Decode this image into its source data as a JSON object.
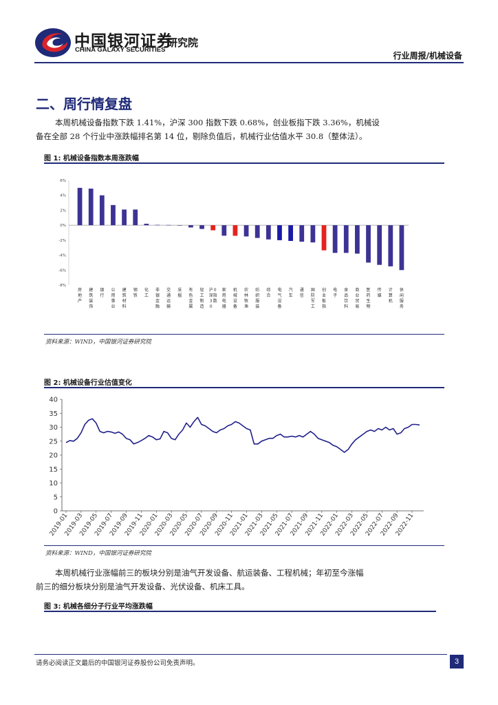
{
  "header": {
    "logo": "china-galaxy-logo",
    "company_cn": "中国银河证券",
    "company_en": "CHINA GALAXY SECURITIES",
    "institute": "研究院",
    "report_type": "行业周报/机械设备"
  },
  "section": {
    "title": "二、周行情复盘",
    "para1_line1": "本周机械设备指数下跌 1.41%，沪深 300 指数下跌 0.68%，创业板指下跌 3.36%，机械设",
    "para1_line2": "备在全部 28 个行业中涨跌幅排名第 14 位，剔除负值后，机械行业估值水平 30.8（整体法）。",
    "para2_line1": "本周机械行业涨幅前三的板块分别是油气开发设备、航运装备、工程机械；年初至今涨幅",
    "para2_line2": "前三的细分板块分别是油气开发设备、光伏设备、机床工具。"
  },
  "figure1": {
    "title": "图 1:  机械设备指数本周涨跌幅",
    "source": "资料来源：WIND，中国银河证券研究院"
  },
  "figure2": {
    "title": "图 2:  机械设备行业估值变化",
    "source": "资料来源：WIND，中国银河证券研究院"
  },
  "figure3": {
    "title": "图 3:  机械各细分子行业平均涨跌幅"
  },
  "footer": {
    "disclaimer": "请务必阅读正文最后的中国银河证券股份公司免责声明。",
    "page": "3"
  },
  "colors": {
    "brand": "#1f2a78",
    "bar_default": "#3d3394",
    "bar_highlight": "#e3231f",
    "bar_index": "#1a1aa8",
    "line": "#1f1f8a",
    "logo_red": "#d9232b"
  },
  "chart_data": [
    {
      "type": "bar",
      "title": "机械设备指数本周涨跌幅",
      "ylim": [
        -8,
        6
      ],
      "yticks": [
        "6%",
        "4%",
        "2%",
        "0%",
        "-2%",
        "-4%",
        "-6%",
        "-8%"
      ],
      "categories": [
        "房地产",
        "建筑装饰",
        "银行",
        "公用事业",
        "建筑材料",
        "钢铁",
        "化工",
        "非银金融",
        "交通运输",
        "采掘",
        "有色金属",
        "轻工制造",
        "沪深300指数",
        "家用电器",
        "机械设备",
        "农林牧渔",
        "纺织服装",
        "综合",
        "电气设备",
        "汽车",
        "通信",
        "国防军工",
        "创业板指",
        "电子",
        "食品饮料",
        "商业贸易",
        "医药生物",
        "传媒",
        "计算机",
        "休闲服务"
      ],
      "values": [
        5.0,
        4.9,
        4.0,
        2.7,
        2.1,
        2.1,
        0.2,
        0.05,
        0.03,
        0.0,
        -0.3,
        -0.5,
        -0.68,
        -1.4,
        -1.41,
        -1.5,
        -1.7,
        -1.9,
        -2.0,
        -2.1,
        -2.2,
        -2.3,
        -3.36,
        -3.7,
        -3.7,
        -3.8,
        -5.0,
        -5.3,
        -5.5,
        -6.0
      ],
      "highlight": [
        "沪深300指数",
        "机械设备",
        "创业板指"
      ],
      "index_bars": [
        "电气设备",
        "汽车"
      ]
    },
    {
      "type": "line",
      "title": "机械设备行业估值变化",
      "ylim": [
        0,
        40
      ],
      "yticks": [
        0,
        5,
        10,
        15,
        20,
        25,
        30,
        35,
        40
      ],
      "xlabels": [
        "2019-01",
        "2019-03",
        "2019-05",
        "2019-07",
        "2019-09",
        "2019-11",
        "2020-01",
        "2020-03",
        "2020-05",
        "2020-07",
        "2020-09",
        "2020-11",
        "2021-01",
        "2021-03",
        "2021-05",
        "2021-07",
        "2021-09",
        "2021-11",
        "2022-01",
        "2022-03",
        "2022-05",
        "2022-07",
        "2022-09",
        "2022-11"
      ],
      "x": [
        0,
        0.5,
        1,
        1.5,
        2,
        2.5,
        3,
        3.5,
        4,
        4.5,
        5,
        5.5,
        6,
        6.5,
        7,
        7.5,
        8,
        8.5,
        9,
        9.5,
        10,
        10.5,
        11,
        11.5,
        12,
        12.5,
        13,
        13.5,
        14,
        14.5,
        15,
        15.5,
        16,
        16.5,
        17,
        17.5,
        18,
        18.5,
        19,
        19.5,
        20,
        20.5,
        21,
        21.5,
        22,
        22.5,
        23,
        23.5,
        24,
        24.5,
        25,
        25.5,
        26,
        26.5,
        27,
        27.5,
        28,
        28.5,
        29,
        29.5,
        30,
        30.5,
        31,
        31.5,
        32,
        32.5,
        33,
        33.5,
        34,
        34.5,
        35,
        35.5,
        36,
        36.5,
        37,
        37.5,
        38,
        38.5,
        39,
        39.5,
        40,
        40.5,
        41,
        41.5,
        42,
        42.5,
        43,
        43.5,
        44,
        44.5,
        45,
        45.5,
        46,
        46.5,
        47
      ],
      "y": [
        24.5,
        25.2,
        25.0,
        26.0,
        28.0,
        31.0,
        32.5,
        33.0,
        31.5,
        28.5,
        28.0,
        28.5,
        28.3,
        27.8,
        28.3,
        27.5,
        26.0,
        25.5,
        24.0,
        24.5,
        25.2,
        26.0,
        27.0,
        26.5,
        25.5,
        25.8,
        28.5,
        28.0,
        26.0,
        25.5,
        27.5,
        29.0,
        31.5,
        30.0,
        32.0,
        33.5,
        31.0,
        30.5,
        29.5,
        28.5,
        28.0,
        29.0,
        29.5,
        30.5,
        31.0,
        32.0,
        31.5,
        30.5,
        29.5,
        29.0,
        24.0,
        24.0,
        25.0,
        25.5,
        26.0,
        26.0,
        27.0,
        27.5,
        26.5,
        26.5,
        26.8,
        26.5,
        27.0,
        26.5,
        27.5,
        28.5,
        27.5,
        26.0,
        25.5,
        25.0,
        24.5,
        23.5,
        23.0,
        22.0,
        21.0,
        22.0,
        24.0,
        25.5,
        26.5,
        27.5,
        28.5,
        29.0,
        28.5,
        29.5,
        29.0,
        30.0,
        29.0,
        29.5,
        27.5,
        28.0,
        29.5,
        30.0,
        31.0,
        31.0,
        30.8
      ],
      "xlabel": "",
      "ylabel": ""
    }
  ]
}
